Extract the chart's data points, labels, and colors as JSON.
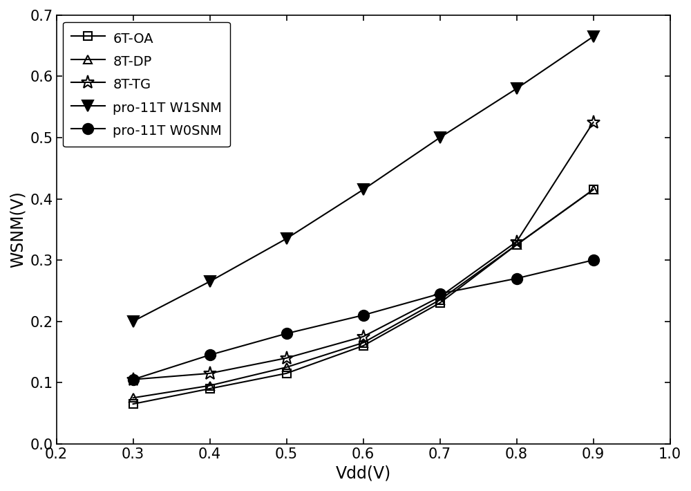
{
  "xlabel": "Vdd(V)",
  "ylabel": "WSNM(V)",
  "xlim": [
    0.2,
    1.0
  ],
  "ylim": [
    0.0,
    0.7
  ],
  "xticks": [
    0.2,
    0.3,
    0.4,
    0.5,
    0.6,
    0.7,
    0.8,
    0.9,
    1.0
  ],
  "yticks": [
    0.0,
    0.1,
    0.2,
    0.3,
    0.4,
    0.5,
    0.6,
    0.7
  ],
  "series": [
    {
      "label": "6T-OA",
      "x": [
        0.3,
        0.4,
        0.5,
        0.6,
        0.7,
        0.8,
        0.9
      ],
      "y": [
        0.065,
        0.09,
        0.115,
        0.16,
        0.23,
        0.325,
        0.415
      ],
      "color": "#000000",
      "marker": "s",
      "markersize": 9,
      "fillstyle": "none",
      "linewidth": 1.5
    },
    {
      "label": "8T-DP",
      "x": [
        0.3,
        0.4,
        0.5,
        0.6,
        0.7,
        0.8,
        0.9
      ],
      "y": [
        0.075,
        0.095,
        0.125,
        0.165,
        0.235,
        0.325,
        0.415
      ],
      "color": "#000000",
      "marker": "^",
      "markersize": 9,
      "fillstyle": "none",
      "linewidth": 1.5
    },
    {
      "label": "8T-TG",
      "x": [
        0.3,
        0.4,
        0.5,
        0.6,
        0.7,
        0.8,
        0.9
      ],
      "y": [
        0.105,
        0.115,
        0.14,
        0.175,
        0.24,
        0.33,
        0.525
      ],
      "color": "#000000",
      "marker": "*",
      "markersize": 14,
      "fillstyle": "none",
      "linewidth": 1.5
    },
    {
      "label": "pro-11T W1SNM",
      "x": [
        0.3,
        0.4,
        0.5,
        0.6,
        0.7,
        0.8,
        0.9
      ],
      "y": [
        0.2,
        0.265,
        0.335,
        0.415,
        0.5,
        0.58,
        0.665
      ],
      "color": "#000000",
      "marker": "v",
      "markersize": 12,
      "fillstyle": "full",
      "linewidth": 1.5
    },
    {
      "label": "pro-11T W0SNM",
      "x": [
        0.3,
        0.4,
        0.5,
        0.6,
        0.7,
        0.8,
        0.9
      ],
      "y": [
        0.105,
        0.145,
        0.18,
        0.21,
        0.245,
        0.27,
        0.3
      ],
      "color": "#000000",
      "marker": "o",
      "markersize": 11,
      "fillstyle": "full",
      "linewidth": 1.5
    }
  ],
  "legend_loc": "upper left",
  "legend_fontsize": 14,
  "tick_fontsize": 15,
  "label_fontsize": 17,
  "figsize": [
    10.0,
    7.1
  ],
  "dpi": 100,
  "bg_color": "#ffffff"
}
